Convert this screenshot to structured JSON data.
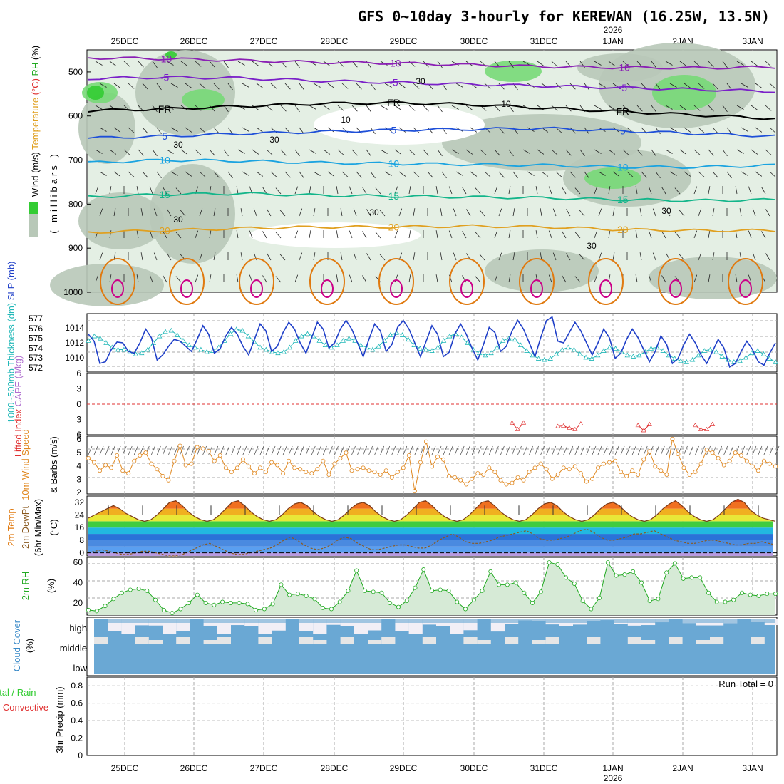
{
  "title": "GFS 0~10day 3-hourly for KEREWAN (16.25W, 13.5N)",
  "year_label": "2026",
  "dates": [
    "25DEC",
    "26DEC",
    "27DEC",
    "28DEC",
    "29DEC",
    "30DEC",
    "31DEC",
    "1JAN",
    "2JAN",
    "3JAN"
  ],
  "run_total_text": "Run Total = 0",
  "colors": {
    "rh_green_dark": "#33cc33",
    "rh_green": "#77d977",
    "rh_gray": "#b8c8b8",
    "rh_light": "#e4efe4",
    "temp_neg10": "#8a1fb4",
    "temp_neg5": "#7a20c8",
    "temp_fr": "#000000",
    "temp_5": "#1e4fd8",
    "temp_10": "#1aa3e0",
    "temp_15": "#13b58a",
    "temp_20": "#e0a020",
    "temp_25": "#e07a10",
    "temp_30": "#cc0088",
    "slp": "#1f3fc8",
    "thickness": "#22b8b8",
    "lifted_index": "#e03030",
    "wind10m": "#e08820",
    "temp2m_line": "#7a3a18",
    "dewpt_line": "#8a5a20",
    "rh2m": "#22aa22",
    "cloud_blue": "#6aa8d4",
    "cloud_light": "#f2eff6",
    "cloud_gray": "#e6e6e6"
  },
  "chart_data": [
    {
      "panel": "upper-air",
      "type": "heatmap",
      "ylabel_parts": [
        "Wind",
        "(m/s)",
        "Temperature",
        "(°C)",
        "RH",
        "(%)"
      ],
      "yaxis_label": "millibars",
      "y_ticks": [
        "500",
        "600",
        "700",
        "800",
        "900",
        "1000"
      ],
      "ylim": [
        1000,
        450
      ],
      "temperature_contours": [
        {
          "label": "-10",
          "level_mb": [
            468,
            470,
            474,
            478,
            480,
            484,
            488,
            490,
            491,
            489
          ]
        },
        {
          "label": "-5",
          "level_mb": [
            515,
            512,
            514,
            520,
            524,
            528,
            532,
            536,
            540,
            544
          ]
        },
        {
          "label": "FR",
          "level_mb": [
            588,
            584,
            578,
            572,
            570,
            574,
            582,
            590,
            598,
            606
          ]
        },
        {
          "label": "5",
          "level_mb": [
            650,
            646,
            640,
            636,
            632,
            630,
            628,
            634,
            640,
            646
          ]
        },
        {
          "label": "10",
          "level_mb": [
            706,
            700,
            702,
            706,
            708,
            710,
            712,
            716,
            716,
            712
          ]
        },
        {
          "label": "15",
          "level_mb": [
            784,
            778,
            776,
            780,
            782,
            784,
            786,
            790,
            792,
            790
          ]
        },
        {
          "label": "20",
          "level_mb": [
            864,
            860,
            855,
            852,
            852,
            850,
            852,
            858,
            860,
            860
          ]
        }
      ],
      "rh_labels": [
        "30",
        "10",
        "30",
        "30",
        "30",
        "30",
        "10",
        "30",
        "30"
      ]
    },
    {
      "panel": "slp-thickness",
      "type": "line",
      "ylabel_parts": [
        "1000~500mb",
        "Thickness (dm)",
        "SLP (mb)"
      ],
      "y_ticks_left": [
        "572",
        "573",
        "574",
        "575",
        "576",
        "577"
      ],
      "y_ticks_right": [
        "1010",
        "1012",
        "1014"
      ],
      "series": [
        {
          "name": "SLP (mb)",
          "values": [
            1013.0,
            1012.2,
            1009.6,
            1009.8,
            1011.2,
            1012.1,
            1012.0,
            1011.0,
            1010.8,
            1012.0,
            1013.6,
            1012.6,
            1010.0,
            1010.6,
            1011.6,
            1012.4,
            1012.2,
            1011.6,
            1011.0,
            1012.4,
            1014.0,
            1013.0,
            1010.8,
            1011.3,
            1012.8,
            1013.8,
            1013.0,
            1011.6,
            1010.6,
            1012.4,
            1014.2,
            1013.4,
            1011.0,
            1011.6,
            1013.2,
            1014.4,
            1013.6,
            1012.0,
            1010.8,
            1012.6,
            1014.4,
            1013.6,
            1011.4,
            1012.0,
            1013.6,
            1014.6,
            1013.6,
            1012.0,
            1010.4,
            1012.4,
            1014.2,
            1013.4,
            1011.0,
            1011.8,
            1013.8,
            1014.6,
            1013.6,
            1012.0,
            1010.4,
            1012.2,
            1014.0,
            1013.0,
            1010.4,
            1010.9,
            1013.0,
            1014.2,
            1013.0,
            1011.4,
            1010.0,
            1011.8,
            1013.8,
            1013.2,
            1011.0,
            1011.6,
            1013.4,
            1014.6,
            1013.6,
            1012.0,
            1010.4,
            1012.6,
            1014.6,
            1015.0,
            1012.2,
            1012.0,
            1013.2,
            1014.4,
            1013.4,
            1012.0,
            1010.6,
            1012.0,
            1013.6,
            1012.6,
            1010.2,
            1010.8,
            1012.4,
            1013.6,
            1012.6,
            1011.2,
            1009.8,
            1011.0,
            1012.8,
            1011.8,
            1009.6,
            1010.2,
            1011.8,
            1013.0,
            1012.0,
            1010.6,
            1009.6,
            1011.0,
            1012.4,
            1011.4,
            1009.2,
            1009.6,
            1011.0,
            1012.2,
            1011.2,
            1009.8,
            1009.4,
            1010.8,
            1012.0
          ]
        },
        {
          "name": "1000~500mb Thickness (dm)",
          "values": [
            574.8,
            575.2,
            575.0,
            574.6,
            574.2,
            574.0,
            574.0,
            573.8,
            573.6,
            573.7,
            574.0,
            574.6,
            575.2,
            575.6,
            575.7,
            575.3,
            574.8,
            574.4,
            574.2,
            574.0,
            573.8,
            573.9,
            574.2,
            574.8,
            575.4,
            575.8,
            575.7,
            575.2,
            574.7,
            574.2,
            574.0,
            573.8,
            573.7,
            573.8,
            574.2,
            574.8,
            575.2,
            575.4,
            575.2,
            574.8,
            574.4,
            574.2,
            574.4,
            574.8,
            575.0,
            574.8,
            574.4,
            574.2,
            574.0,
            574.3,
            574.8,
            575.3,
            575.5,
            575.3,
            574.9,
            574.4,
            574.1,
            574.0,
            573.9,
            574.2,
            574.8,
            575.2,
            575.4,
            575.1,
            574.6,
            574.0,
            573.7,
            573.5,
            573.7,
            574.2,
            574.8,
            575.0,
            574.9,
            574.4,
            573.9,
            573.5,
            573.2,
            573.1,
            573.2,
            573.6,
            574.0,
            574.2,
            574.0,
            573.6,
            573.3,
            573.2,
            573.5,
            573.9,
            574.2,
            574.1,
            573.8,
            573.5,
            573.4,
            573.5,
            573.8,
            574.1,
            574.2,
            573.9,
            573.5,
            573.2,
            573.0,
            572.9,
            573.1,
            573.5,
            573.9,
            574.0,
            573.8,
            573.4,
            573.1,
            572.9,
            573.0,
            573.3,
            573.7,
            573.9,
            573.6,
            573.2,
            572.9
          ]
        }
      ]
    },
    {
      "panel": "cape-li",
      "type": "line",
      "ylabel_parts": [
        "Lifted Index",
        "CAPE (J/kg)"
      ],
      "y_ticks": [
        "6",
        "3",
        "0",
        "3",
        "6"
      ],
      "series": [
        {
          "name": "Lifted Index",
          "values": [
            [
              74,
              4.5
            ],
            [
              75,
              5.8
            ],
            [
              76,
              4.5
            ],
            [
              82,
              5.2
            ],
            [
              83,
              5.1
            ],
            [
              84,
              5.5
            ],
            [
              85,
              5.8
            ],
            [
              86,
              4.7
            ],
            [
              96,
              5.0
            ],
            [
              97,
              6.0
            ],
            [
              98,
              4.8
            ],
            [
              106,
              5.0
            ],
            [
              107,
              5.8
            ],
            [
              108,
              5.8
            ],
            [
              109,
              4.8
            ]
          ]
        }
      ]
    },
    {
      "panel": "wind10m",
      "type": "line",
      "ylabel_parts": [
        "10m Wind",
        "Speed",
        "& Barbs",
        "(m/s)"
      ],
      "y_ticks": [
        "2",
        "3",
        "4",
        "5",
        "6"
      ],
      "series": [
        {
          "name": "10m Wind Speed (m/s)",
          "values": [
            4.6,
            4.3,
            3.7,
            4.1,
            3.9,
            4.8,
            3.7,
            3.5,
            4.4,
            4.8,
            5.0,
            4.2,
            3.8,
            3.3,
            3.0,
            4.4,
            5.5,
            4.1,
            4.2,
            5.4,
            5.3,
            5.1,
            4.4,
            4.8,
            3.9,
            3.6,
            3.9,
            4.5,
            4.0,
            3.5,
            3.9,
            3.6,
            4.3,
            4.1,
            3.5,
            4.4,
            3.9,
            3.8,
            3.6,
            3.5,
            3.8,
            4.4,
            3.4,
            4.2,
            4.6,
            5.0,
            3.7,
            3.8,
            3.9,
            3.7,
            3.6,
            3.4,
            3.7,
            3.2,
            3.6,
            3.9,
            4.8,
            2.2,
            4.3,
            5.8,
            4.0,
            4.7,
            4.5,
            3.3,
            3.2,
            3.0,
            2.7,
            3.1,
            3.5,
            3.4,
            3.9,
            3.6,
            3.0,
            2.7,
            2.8,
            3.2,
            3.0,
            3.6,
            3.9,
            4.2,
            3.8,
            3.1,
            3.4,
            3.9,
            3.8,
            4.0,
            3.5,
            2.9,
            3.1,
            3.9,
            4.2,
            4.3,
            4.4,
            3.6,
            3.3,
            3.7,
            3.4,
            4.5,
            5.1,
            4.0,
            3.7,
            3.4,
            6.0,
            4.9,
            3.9,
            3.4,
            3.6,
            4.2,
            5.2,
            5.0,
            4.6,
            4.1,
            4.4,
            5.0,
            4.8,
            4.4,
            4.0,
            3.7,
            4.4,
            4.2,
            4.0
          ]
        }
      ]
    },
    {
      "panel": "temp2m",
      "type": "area",
      "ylabel_parts": [
        "2m Temp",
        "2m DewPt",
        "(6hr Min/Max)",
        "(°C)"
      ],
      "y_ticks": [
        "0",
        "8",
        "16",
        "24",
        "32"
      ],
      "series": [
        {
          "name": "2m Temp",
          "values": [
            22,
            24,
            26,
            28,
            30,
            28,
            25,
            23,
            21,
            20,
            21,
            24,
            28,
            32,
            33,
            30,
            26,
            23,
            21,
            20,
            21,
            24,
            28,
            32,
            33,
            30,
            26,
            23,
            21,
            20,
            21,
            24,
            28,
            31,
            32,
            30,
            26,
            23,
            21,
            20,
            21,
            24,
            28,
            31,
            32,
            30,
            26,
            23,
            21,
            20,
            21,
            24,
            28,
            32,
            33,
            30,
            26,
            23,
            21,
            20,
            21,
            24,
            28,
            32,
            33,
            30,
            26,
            23,
            21,
            20,
            21,
            24,
            28,
            31,
            32,
            30,
            26,
            23,
            21,
            20,
            21,
            24,
            28,
            31,
            32,
            30,
            26,
            23,
            21,
            20,
            21,
            24,
            28,
            31,
            33,
            30,
            26,
            23,
            21,
            20,
            21,
            24,
            28,
            32,
            34,
            32,
            27,
            24,
            22,
            21,
            20
          ]
        },
        {
          "name": "2m DewPt",
          "values": [
            0,
            1,
            2,
            1,
            0,
            -1,
            -1,
            0,
            1,
            1,
            0,
            -1,
            -2,
            -2,
            -1,
            1,
            3,
            5,
            6,
            4,
            2,
            0,
            -1,
            -1,
            0,
            1,
            2,
            3,
            5,
            8,
            10,
            8,
            5,
            3,
            2,
            3,
            5,
            8,
            10,
            9,
            6,
            4,
            2,
            2,
            3,
            4,
            5,
            5,
            4,
            3,
            3,
            5,
            8,
            10,
            12,
            10,
            7,
            6,
            6,
            7,
            8,
            10,
            11,
            12,
            13,
            14,
            12,
            9,
            8,
            8,
            9,
            10,
            12,
            14,
            15,
            13,
            10,
            8,
            8,
            9,
            10,
            12,
            12,
            13,
            14,
            12,
            10,
            8,
            7,
            6,
            6,
            7,
            8,
            8,
            7,
            6,
            5,
            5,
            6,
            6,
            7,
            6,
            5
          ]
        }
      ]
    },
    {
      "panel": "rh2m",
      "type": "area",
      "ylabel_parts": [
        "2m RH",
        "(%)"
      ],
      "y_ticks": [
        "20",
        "40",
        "60"
      ],
      "series": [
        {
          "name": "2m RH (%)",
          "values": [
            13,
            12,
            17,
            24,
            30,
            33,
            34,
            32,
            23,
            13,
            10,
            14,
            20,
            28,
            20,
            18,
            21,
            20,
            20,
            19,
            13,
            14,
            19,
            38,
            28,
            29,
            27,
            24,
            15,
            14,
            21,
            32,
            52,
            32,
            31,
            30,
            20,
            16,
            22,
            35,
            53,
            32,
            33,
            32,
            21,
            14,
            23,
            32,
            51,
            38,
            38,
            40,
            30,
            20,
            31,
            60,
            58,
            45,
            39,
            22,
            14,
            25,
            60,
            47,
            48,
            51,
            40,
            22,
            24,
            50,
            59,
            44,
            45,
            45,
            30,
            21,
            21,
            23,
            30,
            28,
            27,
            29,
            29
          ]
        }
      ]
    },
    {
      "panel": "cloud-cover",
      "type": "area",
      "ylabel_parts": [
        "Cloud Cover",
        "(%)"
      ],
      "row_labels": [
        "high",
        "middle",
        "low"
      ]
    },
    {
      "panel": "precip",
      "type": "bar",
      "ylabel_parts": [
        "Total / Rain",
        "Convective",
        "3hr Precip (mm)"
      ],
      "y_ticks": [
        "0",
        "0.2",
        "0.4",
        "0.6",
        "0.8"
      ],
      "ylim": [
        0,
        0.9
      ],
      "values": []
    }
  ]
}
